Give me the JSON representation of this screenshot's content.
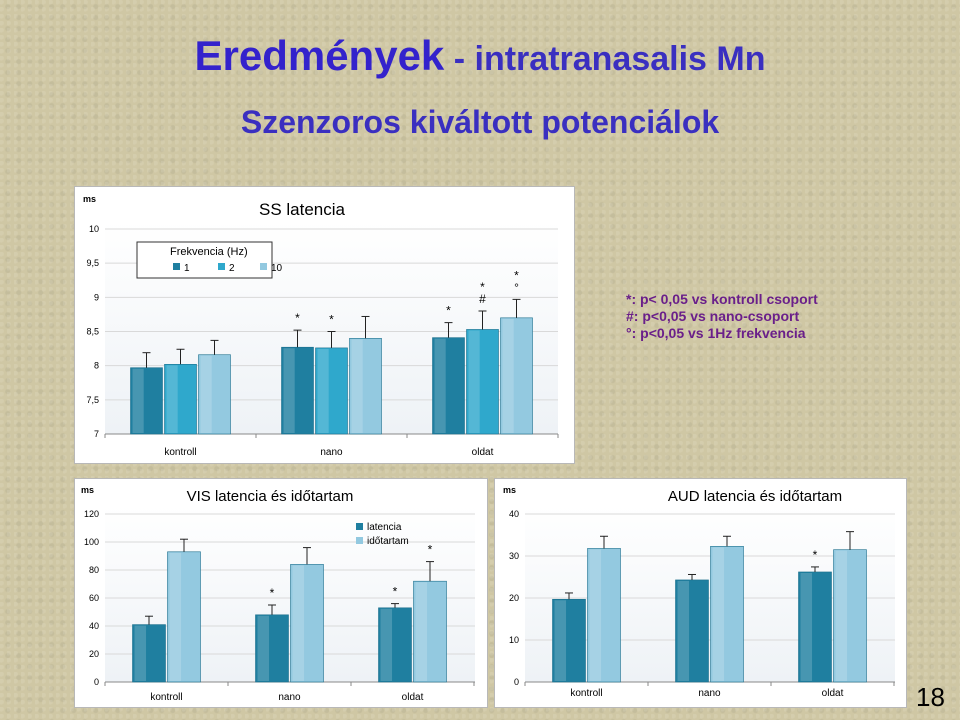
{
  "slide": {
    "title_main": "Eredmények",
    "title_rest": " - intratranasalis Mn",
    "subtitle": "Szenzoros kiváltott potenciálok",
    "notes": [
      "*: p< 0,05 vs kontroll csoport",
      "#: p<0,05 vs nano-csoport",
      "°: p<0,05 vs 1Hz frekvencia"
    ],
    "page_number": "18"
  },
  "colors": {
    "title": "#3322cc",
    "notes": "#6a1f8a",
    "series_dark": "#1f7fa0",
    "series_mid": "#2fa8cc",
    "series_light": "#93c9e0"
  },
  "chart_data": [
    {
      "type": "bar",
      "title": "SS  latencia",
      "unit": "ms",
      "categories": [
        "kontroll",
        "nano",
        "oldat"
      ],
      "legend_title": "Frekvencia (Hz)",
      "series": [
        {
          "name": "1",
          "values": [
            7.97,
            8.27,
            8.41
          ],
          "errors": [
            0.22,
            0.25,
            0.22
          ],
          "markers": [
            "",
            "*",
            "*"
          ]
        },
        {
          "name": "2",
          "values": [
            8.02,
            8.26,
            8.53
          ],
          "errors": [
            0.22,
            0.24,
            0.27
          ],
          "markers": [
            "",
            "*",
            "* #"
          ]
        },
        {
          "name": "10",
          "values": [
            8.16,
            8.4,
            8.7
          ],
          "errors": [
            0.21,
            0.32,
            0.27
          ],
          "markers": [
            "",
            "",
            "* °"
          ]
        }
      ],
      "ylim": [
        7,
        10
      ],
      "yticks": [
        "7",
        "7,5",
        "8",
        "8,5",
        "9",
        "9,5",
        "10"
      ],
      "legend": "top-left"
    },
    {
      "type": "bar",
      "title": "VIS latencia és időtartam",
      "unit": "ms",
      "categories": [
        "kontroll",
        "nano",
        "oldat"
      ],
      "series": [
        {
          "name": "latencia",
          "values": [
            41,
            48,
            53
          ],
          "errors": [
            6,
            7,
            3
          ],
          "markers": [
            "",
            "*",
            "*"
          ]
        },
        {
          "name": "időtartam",
          "values": [
            93,
            84,
            72
          ],
          "errors": [
            9,
            12,
            14
          ],
          "markers": [
            "",
            "",
            "*"
          ]
        }
      ],
      "ylim": [
        0,
        120
      ],
      "yticks": [
        "0",
        "20",
        "40",
        "60",
        "80",
        "100",
        "120"
      ],
      "legend": "top-right"
    },
    {
      "type": "bar",
      "title": "AUD latencia és időtartam",
      "unit": "ms",
      "categories": [
        "kontroll",
        "nano",
        "oldat"
      ],
      "series": [
        {
          "name": "latencia",
          "values": [
            19.7,
            24.3,
            26.2
          ],
          "errors": [
            1.5,
            1.3,
            1.2
          ],
          "markers": [
            "",
            "",
            "*"
          ]
        },
        {
          "name": "időtartam",
          "values": [
            31.8,
            32.3,
            31.5
          ],
          "errors": [
            2.9,
            2.4,
            4.3
          ],
          "markers": [
            "",
            "",
            ""
          ]
        }
      ],
      "ylim": [
        0,
        40
      ],
      "yticks": [
        "0",
        "10",
        "20",
        "30",
        "40"
      ],
      "legend": "none"
    }
  ]
}
